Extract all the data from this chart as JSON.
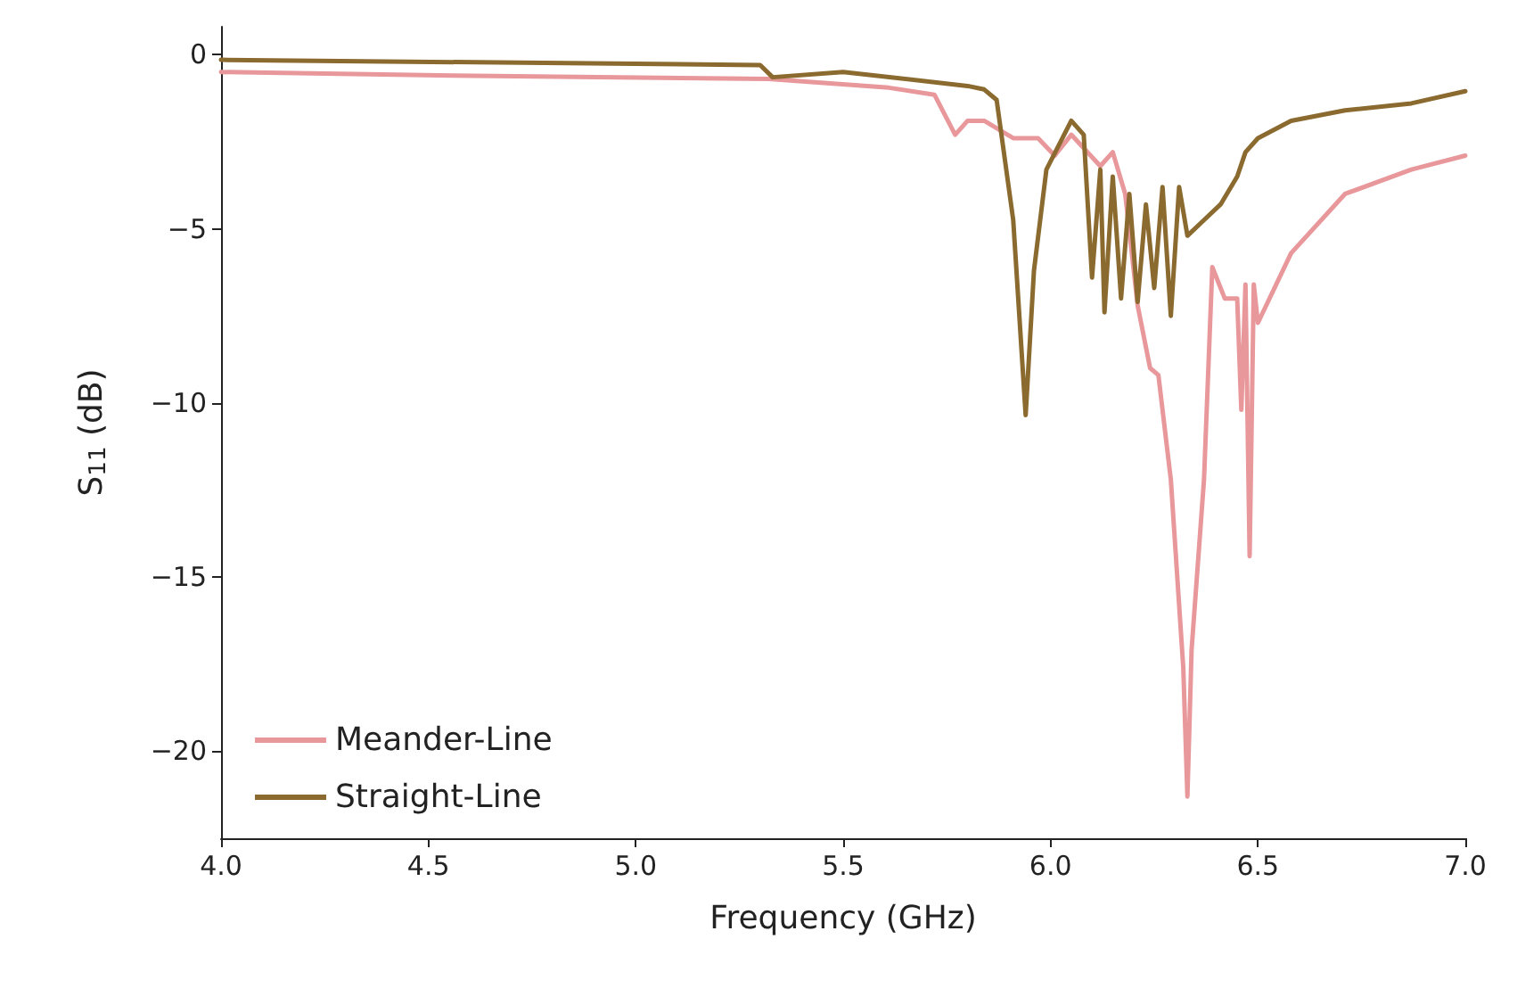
{
  "chart_data": {
    "type": "line",
    "xlabel": "Frequency (GHz)",
    "ylabel": "S$_{11}$ (dB)",
    "xlim": [
      4.0,
      7.0
    ],
    "ylim": [
      -22.5,
      0.8
    ],
    "xticks": [
      {
        "value": 4.0,
        "label": "4.0"
      },
      {
        "value": 4.5,
        "label": "4.5"
      },
      {
        "value": 5.0,
        "label": "5.0"
      },
      {
        "value": 5.5,
        "label": "5.5"
      },
      {
        "value": 6.0,
        "label": "6.0"
      },
      {
        "value": 6.5,
        "label": "6.5"
      },
      {
        "value": 7.0,
        "label": "7.0"
      }
    ],
    "yticks": [
      {
        "value": 0,
        "label": "0"
      },
      {
        "value": -5,
        "label": "−5"
      },
      {
        "value": -10,
        "label": "−10"
      },
      {
        "value": -15,
        "label": "−15"
      },
      {
        "value": -20,
        "label": "−20"
      }
    ],
    "grid": false,
    "legend": "bottom left",
    "series": [
      {
        "name": "Meander-Line",
        "color": "#e8979b",
        "x": [
          4.0,
          4.56,
          5.32,
          5.61,
          5.72,
          5.77,
          5.8,
          5.84,
          5.91,
          5.97,
          6.01,
          6.05,
          6.12,
          6.15,
          6.18,
          6.21,
          6.24,
          6.26,
          6.29,
          6.32,
          6.33,
          6.34,
          6.37,
          6.39,
          6.42,
          6.45,
          6.46,
          6.47,
          6.48,
          6.49,
          6.5,
          6.58,
          6.71,
          6.87,
          7.0
        ],
        "values": [
          -0.5,
          -0.6,
          -0.7,
          -0.95,
          -1.15,
          -2.3,
          -1.9,
          -1.9,
          -2.4,
          -2.4,
          -2.9,
          -2.3,
          -3.2,
          -2.8,
          -4.0,
          -7.2,
          -9.0,
          -9.2,
          -12.2,
          -17.6,
          -21.3,
          -17.1,
          -12.2,
          -6.1,
          -7.0,
          -7.0,
          -10.2,
          -6.6,
          -14.4,
          -6.6,
          -7.7,
          -5.7,
          -4.0,
          -3.3,
          -2.9
        ]
      },
      {
        "name": "Straight-Line",
        "color": "#8b6a2f",
        "x": [
          4.0,
          5.3,
          5.33,
          5.5,
          5.8,
          5.84,
          5.87,
          5.91,
          5.94,
          5.96,
          5.99,
          6.05,
          6.08,
          6.1,
          6.12,
          6.13,
          6.15,
          6.17,
          6.19,
          6.21,
          6.23,
          6.25,
          6.27,
          6.29,
          6.31,
          6.33,
          6.37,
          6.41,
          6.45,
          6.47,
          6.5,
          6.58,
          6.71,
          6.87,
          7.0
        ],
        "values": [
          -0.15,
          -0.3,
          -0.65,
          -0.5,
          -0.9,
          -1.0,
          -1.3,
          -4.75,
          -10.35,
          -6.2,
          -3.3,
          -1.9,
          -2.3,
          -6.4,
          -3.3,
          -7.4,
          -3.5,
          -7.0,
          -4.0,
          -7.1,
          -4.3,
          -6.7,
          -3.8,
          -7.5,
          -3.8,
          -5.2,
          -4.75,
          -4.3,
          -3.5,
          -2.8,
          -2.4,
          -1.9,
          -1.6,
          -1.4,
          -1.05
        ]
      }
    ]
  }
}
